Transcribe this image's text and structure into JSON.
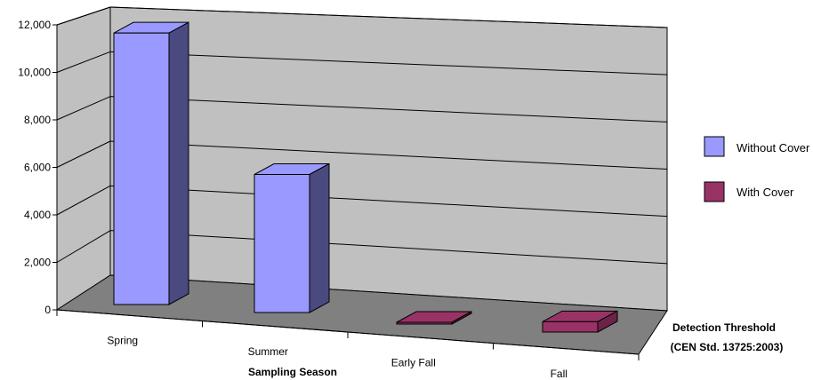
{
  "chart_data": {
    "type": "bar",
    "title": "",
    "xlabel": "Sampling Season",
    "ylabel": "",
    "ylim": [
      0,
      12000
    ],
    "yticks": [
      "0",
      "2,000",
      "4,000",
      "6,000",
      "8,000",
      "10,000",
      "12,000"
    ],
    "yticks_values": [
      0,
      2000,
      4000,
      6000,
      8000,
      10000,
      12000
    ],
    "categories": [
      "Spring",
      "Summer",
      "Early Fall",
      "Fall"
    ],
    "depth_axis_label": [
      "Detection Threshold",
      "(CEN Std. 13725:2003)"
    ],
    "legend_position": "right",
    "grid": true,
    "three_d": true,
    "series": [
      {
        "name": "Without Cover",
        "color": "#9999ff",
        "values": [
          11800,
          6000,
          null,
          null
        ]
      },
      {
        "name": "With Cover",
        "color": "#993366",
        "values": [
          null,
          null,
          0,
          450
        ]
      }
    ]
  },
  "colors": {
    "wall": "#c0c0c0",
    "floor": "#808080",
    "without_cover_front": "#9999ff",
    "without_cover_side": "#4a4a80",
    "with_cover_front": "#993366",
    "with_cover_side": "#6b2347"
  }
}
